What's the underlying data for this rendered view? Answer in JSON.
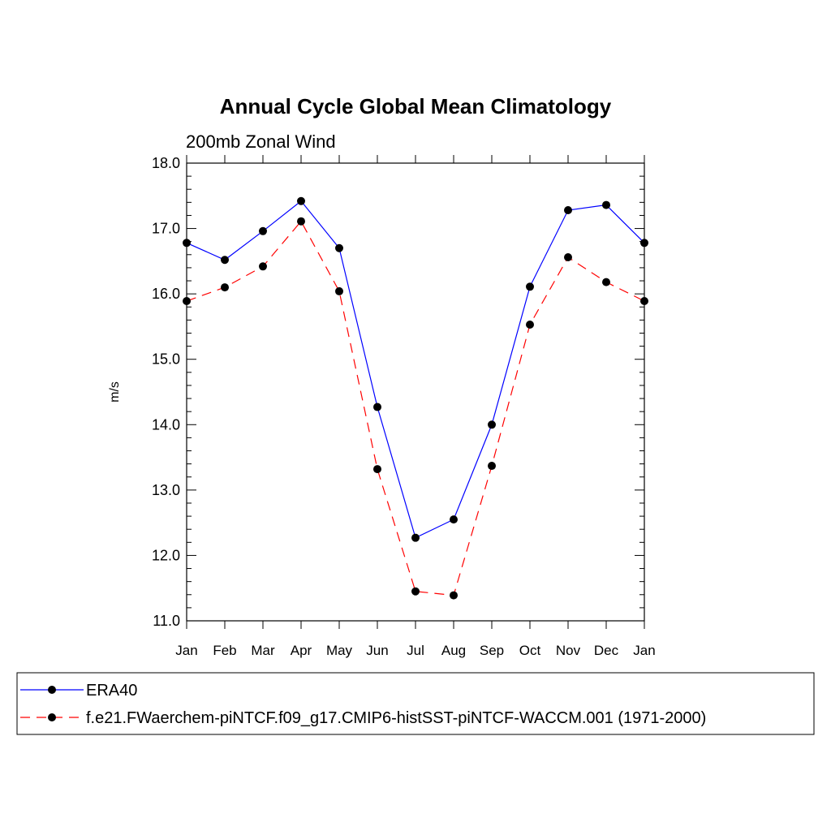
{
  "chart_data": {
    "type": "line",
    "title": "Annual Cycle Global Mean Climatology",
    "subtitle": "200mb Zonal Wind",
    "xlabel": "",
    "ylabel": "m/s",
    "ylim": [
      11.0,
      18.0
    ],
    "yticks": [
      "11.0",
      "12.0",
      "13.0",
      "14.0",
      "15.0",
      "16.0",
      "17.0",
      "18.0"
    ],
    "categories": [
      "Jan",
      "Feb",
      "Mar",
      "Apr",
      "May",
      "Jun",
      "Jul",
      "Aug",
      "Sep",
      "Oct",
      "Nov",
      "Dec",
      "Jan"
    ],
    "series": [
      {
        "name": "ERA40",
        "color": "#0000ff",
        "dash": "solid",
        "values": [
          16.78,
          16.52,
          16.96,
          17.42,
          16.7,
          14.27,
          12.27,
          12.55,
          14.0,
          16.11,
          17.28,
          17.36,
          16.78
        ]
      },
      {
        "name": "f.e21.FWaerchem-piNTCF.f09_g17.CMIP6-histSST-piNTCF-WACCM.001 (1971-2000)",
        "color": "#ff0000",
        "dash": "dashed",
        "values": [
          15.89,
          16.1,
          16.42,
          17.11,
          16.04,
          13.32,
          11.45,
          11.39,
          13.37,
          15.53,
          16.56,
          16.18,
          15.89
        ]
      }
    ],
    "legend_position": "bottom"
  }
}
